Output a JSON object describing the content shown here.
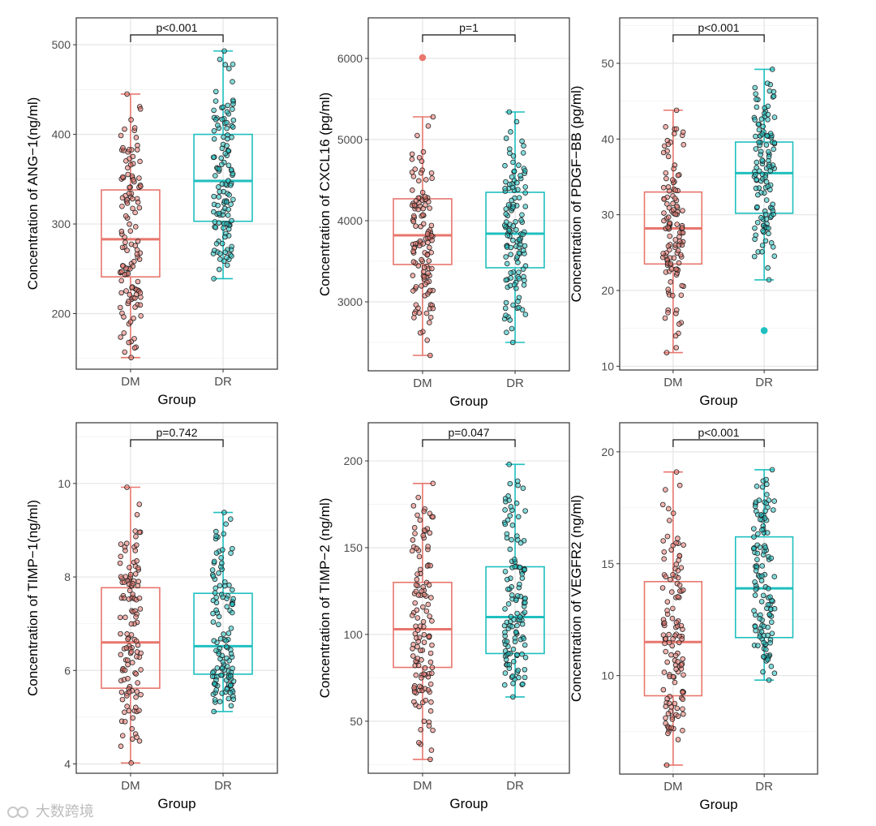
{
  "watermark": "大数跨境",
  "colors": {
    "DM": "#E8766D",
    "DR": "#1FBFBF",
    "frame": "#333333",
    "grid": "#E5E5E5",
    "text": "#4D4D4D"
  },
  "chart_data": [
    {
      "type": "box",
      "ylabel": "Concentration of ANG−1(ng/ml)",
      "xlabel": "Group",
      "categories": [
        "DM",
        "DR"
      ],
      "ylim": [
        138,
        530
      ],
      "yticks": [
        200,
        300,
        400,
        500
      ],
      "p_label": "p<0.001",
      "boxes": [
        {
          "group": "DM",
          "min": 151,
          "q1": 241,
          "median": 283,
          "q3": 338,
          "max": 445,
          "outliers": []
        },
        {
          "group": "DR",
          "min": 239,
          "q1": 303,
          "median": 348,
          "q3": 400,
          "max": 493,
          "outliers": []
        }
      ]
    },
    {
      "type": "box",
      "ylabel": "Concentration of CXCL16 (pg/ml)",
      "xlabel": "Group",
      "categories": [
        "DM",
        "DR"
      ],
      "ylim": [
        2150,
        6500
      ],
      "yticks": [
        3000,
        4000,
        5000,
        6000
      ],
      "p_label": "p=1",
      "boxes": [
        {
          "group": "DM",
          "min": 2340,
          "q1": 3460,
          "median": 3820,
          "q3": 4270,
          "max": 5280,
          "outliers": [
            6010
          ]
        },
        {
          "group": "DR",
          "min": 2500,
          "q1": 3420,
          "median": 3840,
          "q3": 4350,
          "max": 5340,
          "outliers": []
        }
      ]
    },
    {
      "type": "box",
      "ylabel": "Concentration of PDGF−BB (pg/ml)",
      "xlabel": "Group",
      "categories": [
        "DM",
        "DR"
      ],
      "ylim": [
        9.5,
        56
      ],
      "yticks": [
        10,
        20,
        30,
        40,
        50
      ],
      "p_label": "p<0.001",
      "boxes": [
        {
          "group": "DM",
          "min": 11.8,
          "q1": 23.5,
          "median": 28.2,
          "q3": 33.0,
          "max": 43.8,
          "outliers": []
        },
        {
          "group": "DR",
          "min": 21.4,
          "q1": 30.2,
          "median": 35.5,
          "q3": 39.6,
          "max": 49.2,
          "outliers": [
            14.7
          ]
        }
      ]
    },
    {
      "type": "box",
      "ylabel": "Concentration of TIMP−1(ng/ml)",
      "xlabel": "Group",
      "categories": [
        "DM",
        "DR"
      ],
      "ylim": [
        3.8,
        11.3
      ],
      "yticks": [
        4,
        6,
        8,
        10
      ],
      "p_label": "p=0.742",
      "boxes": [
        {
          "group": "DM",
          "min": 4.02,
          "q1": 5.62,
          "median": 6.6,
          "q3": 7.77,
          "max": 9.92,
          "outliers": []
        },
        {
          "group": "DR",
          "min": 5.12,
          "q1": 5.92,
          "median": 6.52,
          "q3": 7.65,
          "max": 9.38,
          "outliers": []
        }
      ]
    },
    {
      "type": "box",
      "ylabel": "Concentration of TIMP−2 (ng/ml)",
      "xlabel": "Group",
      "categories": [
        "DM",
        "DR"
      ],
      "ylim": [
        20,
        222
      ],
      "yticks": [
        50,
        100,
        150,
        200
      ],
      "p_label": "p=0.047",
      "boxes": [
        {
          "group": "DM",
          "min": 28,
          "q1": 81,
          "median": 103,
          "q3": 130,
          "max": 187,
          "outliers": []
        },
        {
          "group": "DR",
          "min": 64,
          "q1": 89,
          "median": 110,
          "q3": 139,
          "max": 198,
          "outliers": []
        }
      ]
    },
    {
      "type": "box",
      "ylabel": "Concentration of VEGFR2 (ng/ml)",
      "xlabel": "Group",
      "categories": [
        "DM",
        "DR"
      ],
      "ylim": [
        5.6,
        21.3
      ],
      "yticks": [
        10,
        15,
        20
      ],
      "p_label": "p<0.001",
      "boxes": [
        {
          "group": "DM",
          "min": 6.0,
          "q1": 9.1,
          "median": 11.5,
          "q3": 14.2,
          "max": 19.1,
          "outliers": []
        },
        {
          "group": "DR",
          "min": 9.8,
          "q1": 11.7,
          "median": 13.9,
          "q3": 16.2,
          "max": 19.2,
          "outliers": []
        }
      ]
    }
  ]
}
